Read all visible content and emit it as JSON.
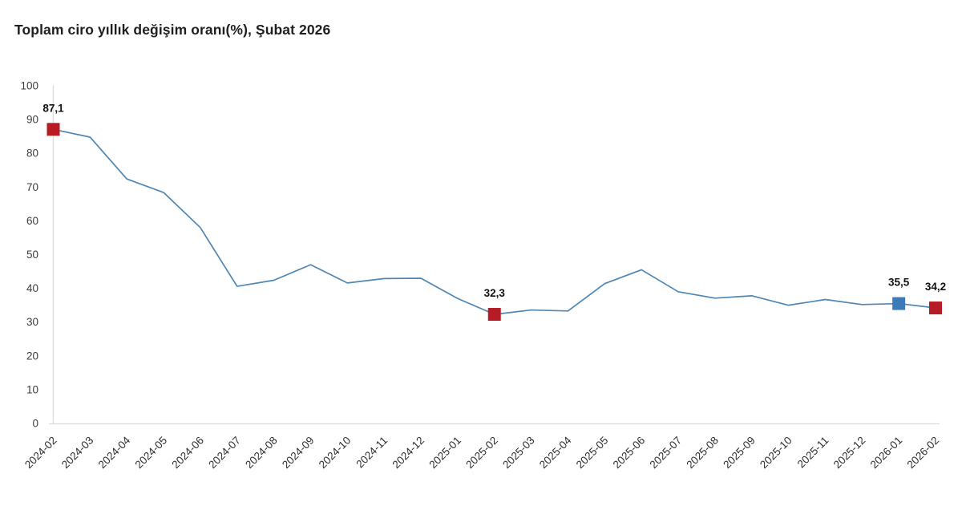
{
  "title": "Toplam ciro yıllık değişim oranı(%), Şubat 2026",
  "chart_data": {
    "type": "line",
    "title": "Toplam ciro yıllık değişim oranı(%), Şubat 2026",
    "xlabel": "",
    "ylabel": "",
    "ylim": [
      0,
      100
    ],
    "yticks": [
      0,
      10,
      20,
      30,
      40,
      50,
      60,
      70,
      80,
      90,
      100
    ],
    "grid": false,
    "legend": "none",
    "line_color": "#4e86b4",
    "axis_color": "#d9d9d9",
    "categories": [
      "2024-02",
      "2024-03",
      "2024-04",
      "2024-05",
      "2024-06",
      "2024-07",
      "2024-08",
      "2024-09",
      "2024-10",
      "2024-11",
      "2024-12",
      "2025-01",
      "2025-02",
      "2025-03",
      "2025-04",
      "2025-05",
      "2025-06",
      "2025-07",
      "2025-08",
      "2025-09",
      "2025-10",
      "2025-11",
      "2025-12",
      "2026-01",
      "2026-02"
    ],
    "values": [
      87.1,
      84.8,
      72.4,
      68.4,
      58.0,
      40.6,
      42.4,
      47.0,
      41.6,
      42.9,
      43.0,
      37.0,
      32.3,
      33.6,
      33.3,
      41.4,
      45.5,
      39.0,
      37.1,
      37.8,
      35.0,
      36.7,
      35.2,
      35.5,
      34.2
    ],
    "annotated_points": [
      {
        "category": "2024-02",
        "index": 0,
        "value": 87.1,
        "display": "87,1",
        "marker_color": "#b71c24"
      },
      {
        "category": "2025-02",
        "index": 12,
        "value": 32.3,
        "display": "32,3",
        "marker_color": "#b71c24"
      },
      {
        "category": "2026-01",
        "index": 23,
        "value": 35.5,
        "display": "35,5",
        "marker_color": "#3c7bb8"
      },
      {
        "category": "2026-02",
        "index": 24,
        "value": 34.2,
        "display": "34,2",
        "marker_color": "#b71c24"
      }
    ]
  }
}
